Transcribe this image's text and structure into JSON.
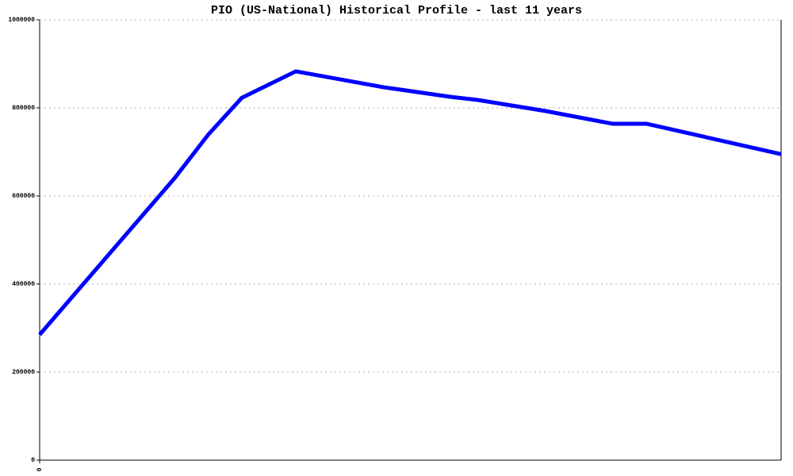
{
  "chart_data": {
    "type": "line",
    "title": "PIO (US-National) Historical Profile - last 11 years",
    "x": [
      0,
      2,
      2.5,
      3,
      3.8,
      5.1,
      6.1,
      6.5,
      7.5,
      8.5,
      9,
      11
    ],
    "series": [
      {
        "color": "#0000ff",
        "values": [
          285000,
          640000,
          739000,
          823000,
          883000,
          847000,
          825000,
          818000,
          793000,
          764000,
          764000,
          695000
        ]
      }
    ],
    "xlim": [
      0,
      11
    ],
    "xticks": [
      0
    ],
    "ylim": [
      0,
      1000000
    ],
    "yticks": [
      0,
      200000,
      400000,
      600000,
      800000,
      1000000
    ],
    "grid": true
  }
}
